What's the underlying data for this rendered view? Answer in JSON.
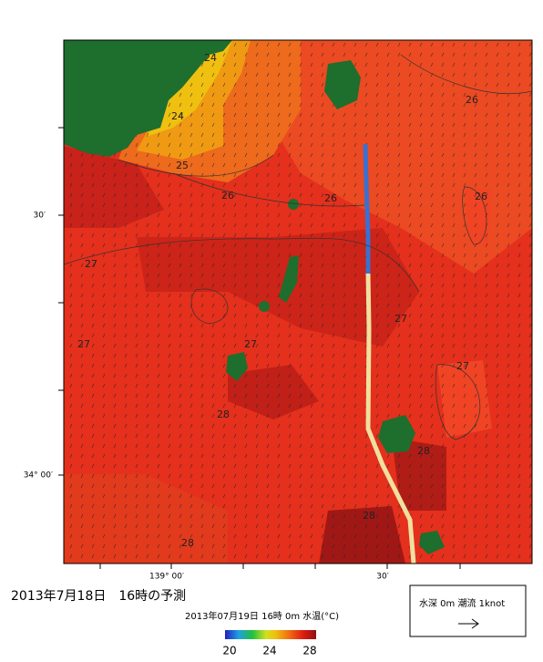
{
  "map": {
    "axes": {
      "lat_labels": [
        "30′",
        "34° 00′"
      ],
      "lon_labels": [
        "139° 00′",
        "30′"
      ]
    },
    "contour_labels": [
      "24",
      "24",
      "25",
      "26",
      "26",
      "26",
      "26",
      "27",
      "27",
      "27",
      "27",
      "27",
      "28",
      "28",
      "28",
      "28"
    ],
    "title": "2013年7月18日　16時の予測",
    "subtitle": "2013年07月19日 16時 0m 水温(°C)",
    "colorbar_labels": [
      "20",
      "24",
      "28"
    ],
    "legend": "水深 0m 潮流 1knot"
  }
}
